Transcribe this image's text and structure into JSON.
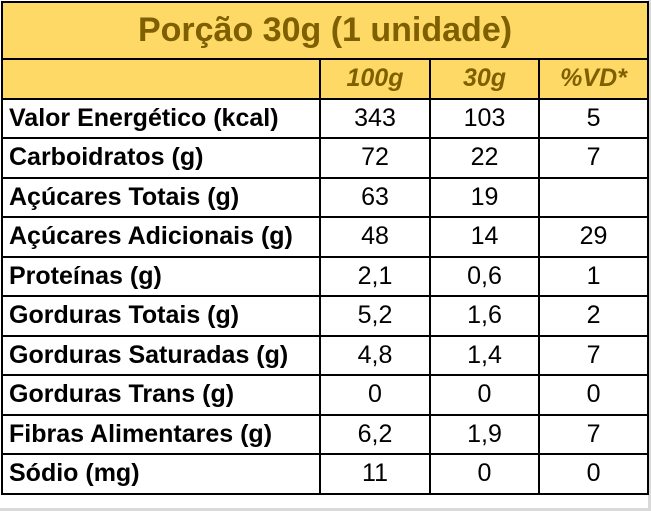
{
  "title": "Porção 30g (1 unidade)",
  "columns": [
    "",
    "100g",
    "30g",
    "%VD*"
  ],
  "rows": [
    {
      "label": "Valor Energético (kcal)",
      "v100": "343",
      "v30": "103",
      "vd": "5"
    },
    {
      "label": "Carboidratos (g)",
      "v100": "72",
      "v30": "22",
      "vd": "7"
    },
    {
      "label": "Açúcares Totais (g)",
      "v100": "63",
      "v30": "19",
      "vd": ""
    },
    {
      "label": "Açúcares Adicionais (g)",
      "v100": "48",
      "v30": "14",
      "vd": "29"
    },
    {
      "label": "Proteínas (g)",
      "v100": "2,1",
      "v30": "0,6",
      "vd": "1"
    },
    {
      "label": "Gorduras Totais (g)",
      "v100": "5,2",
      "v30": "1,6",
      "vd": "2"
    },
    {
      "label": "Gorduras Saturadas (g)",
      "v100": "4,8",
      "v30": "1,4",
      "vd": "7"
    },
    {
      "label": "Gorduras Trans (g)",
      "v100": "0",
      "v30": "0",
      "vd": "0"
    },
    {
      "label": "Fibras Alimentares (g)",
      "v100": "6,2",
      "v30": "1,9",
      "vd": "7"
    },
    {
      "label": "Sódio (mg)",
      "v100": "11",
      "v30": "0",
      "vd": "0"
    }
  ],
  "colors": {
    "header_bg": "#ffd966",
    "header_text": "#7f6000"
  }
}
